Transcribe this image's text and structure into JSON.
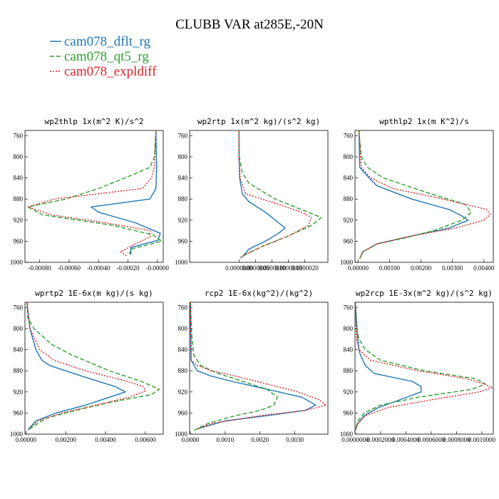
{
  "figure_title": "CLUBB VAR at285E,-20N",
  "legend": [
    {
      "label": "cam078_dflt_rg",
      "color": "#1f77b4",
      "dash": "solid"
    },
    {
      "label": "cam078_qt5_rg",
      "color": "#2ca02c",
      "dash": "dashed"
    },
    {
      "label": "cam078_expldiff",
      "color": "#d62728",
      "dash": "dotted"
    }
  ],
  "chart_data": [
    {
      "type": "line",
      "title": "wp2thlp  1x(m^2 K)/s^2",
      "xlim": [
        -0.0009,
        4e-05
      ],
      "xticks": [
        -0.0008,
        -0.0006,
        -0.0004,
        -0.0002,
        0.0
      ],
      "xticklabels": [
        "-0.00080",
        "-0.00060",
        "-0.00040",
        "-0.00020",
        "-0.00000"
      ],
      "ylim": [
        1000,
        750
      ],
      "yticks": [
        760,
        800,
        840,
        880,
        920,
        960,
        1000
      ],
      "series": [
        {
          "name": "cam078_dflt_rg",
          "y": [
            750,
            820,
            860,
            880,
            895,
            905,
            925,
            945,
            958,
            972,
            985
          ],
          "x": [
            -1e-05,
            -5e-06,
            -1e-05,
            -5e-05,
            -0.00045,
            -0.0004,
            -0.00015,
            2e-05,
            5e-06,
            -0.00018,
            -0.00018
          ]
        },
        {
          "name": "cam078_qt5_rg",
          "y": [
            750,
            800,
            820,
            840,
            860,
            880,
            895,
            910,
            930,
            948,
            960,
            975,
            985
          ],
          "x": [
            -1e-05,
            -2e-05,
            -5e-05,
            -0.00022,
            -0.0004,
            -0.00062,
            -0.00088,
            -0.00078,
            -0.0003,
            -3e-05,
            3e-05,
            -0.00018,
            -0.00019
          ]
        },
        {
          "name": "cam078_expldiff",
          "y": [
            750,
            820,
            840,
            860,
            880,
            895,
            910,
            925,
            940,
            952,
            965,
            980,
            988
          ],
          "x": [
            -1e-05,
            -2e-05,
            -4e-05,
            -0.0001,
            -0.0007,
            -0.00088,
            -0.00072,
            -0.00035,
            -5e-05,
            -5e-05,
            -0.00015,
            -0.00025,
            -0.00021
          ]
        }
      ]
    },
    {
      "type": "line",
      "title": "wp2rtp  1x(m^2 kg)/(s^2 kg)",
      "xlim": [
        -1.5e-06,
        2.7e-06
      ],
      "xticks": [
        0.0,
        5e-07,
        1e-06,
        1.5e-06,
        2e-06
      ],
      "xticklabels": [
        "0.0000000",
        "0.0000005",
        "0.0000010",
        "0.0000015",
        "0.0000020"
      ],
      "ylim": [
        1000,
        750
      ],
      "yticks": [
        760,
        800,
        840,
        880,
        920,
        960,
        1000
      ],
      "series": [
        {
          "name": "cam078_dflt_rg",
          "y": [
            750,
            800,
            840,
            870,
            885,
            905,
            925,
            935,
            945,
            960,
            975,
            990
          ],
          "x": [
            0.0,
            0.0,
            2e-08,
            1e-07,
            3e-07,
            8e-07,
            1.2e-06,
            1.4e-06,
            1.2e-06,
            8e-07,
            3e-07,
            1e-07
          ]
        },
        {
          "name": "cam078_qt5_rg",
          "y": [
            750,
            800,
            830,
            850,
            880,
            900,
            915,
            930,
            950,
            970,
            985,
            992
          ],
          "x": [
            0.0,
            1e-08,
            1e-07,
            3e-07,
            1.1e-06,
            1.9e-06,
            2.5e-06,
            2.2e-06,
            1.5e-06,
            7e-07,
            2e-07,
            5e-08
          ]
        },
        {
          "name": "cam078_expldiff",
          "y": [
            750,
            800,
            840,
            870,
            890,
            905,
            915,
            930,
            950,
            970,
            985,
            990
          ],
          "x": [
            0.0,
            0.0,
            3e-08,
            2e-07,
            1.2e-06,
            1.9e-06,
            2.2e-06,
            2.1e-06,
            1.5e-06,
            7e-07,
            2e-07,
            5e-08
          ]
        }
      ]
    },
    {
      "type": "line",
      "title": "wpthlp2  1x(m K^2)/s",
      "xlim": [
        -0.0001,
        0.0043
      ],
      "xticks": [
        0.0,
        0.001,
        0.002,
        0.003,
        0.004
      ],
      "xticklabels": [
        "0.00000",
        "0.00100",
        "0.00200",
        "0.00300",
        "0.00400"
      ],
      "ylim": [
        1000,
        750
      ],
      "yticks": [
        760,
        800,
        840,
        880,
        920,
        960,
        1000
      ],
      "series": [
        {
          "name": "cam078_dflt_rg",
          "y": [
            750,
            820,
            840,
            855,
            880,
            900,
            912,
            920,
            935,
            950,
            965,
            980,
            993
          ],
          "x": [
            3e-05,
            5e-05,
            0.00035,
            0.0006,
            0.0017,
            0.0029,
            0.0033,
            0.0035,
            0.0029,
            0.0017,
            0.0006,
            0.00015,
            5e-05
          ]
        },
        {
          "name": "cam078_qt5_rg",
          "y": [
            750,
            800,
            820,
            840,
            870,
            890,
            905,
            920,
            940,
            955,
            965,
            980,
            993
          ],
          "x": [
            2e-05,
            0.0001,
            0.0003,
            0.0008,
            0.0023,
            0.0034,
            0.0036,
            0.0033,
            0.0024,
            0.0014,
            0.0006,
            0.00015,
            5e-05
          ]
        },
        {
          "name": "cam078_expldiff",
          "y": [
            750,
            820,
            840,
            860,
            880,
            900,
            910,
            920,
            935,
            950,
            965,
            980,
            993
          ],
          "x": [
            3e-05,
            0.0001,
            0.0004,
            0.0011,
            0.0027,
            0.0041,
            0.0042,
            0.004,
            0.0031,
            0.0017,
            0.0006,
            0.00015,
            5e-05
          ]
        }
      ]
    },
    {
      "type": "line",
      "title": "wprtp2  1E-6x(m kg)/(s kg)",
      "xlim": [
        -5e-05,
        0.0069
      ],
      "xticks": [
        0.0,
        0.002,
        0.004,
        0.006
      ],
      "xticklabels": [
        "0.00000",
        "0.00200",
        "0.00400",
        "0.00600"
      ],
      "ylim": [
        1000,
        750
      ],
      "yticks": [
        760,
        800,
        840,
        880,
        920,
        960,
        1000
      ],
      "series": [
        {
          "name": "cam078_dflt_rg",
          "y": [
            750,
            800,
            840,
            860,
            870,
            890,
            910,
            920,
            930,
            945,
            960,
            975,
            992
          ],
          "x": [
            5e-05,
            0.0002,
            0.0005,
            0.0008,
            0.0012,
            0.0028,
            0.0045,
            0.005,
            0.0042,
            0.003,
            0.0015,
            0.0005,
            0.0001
          ]
        },
        {
          "name": "cam078_qt5_rg",
          "y": [
            750,
            780,
            800,
            830,
            850,
            880,
            900,
            915,
            925,
            940,
            955,
            970,
            992
          ],
          "x": [
            5e-05,
            0.0001,
            0.0004,
            0.0013,
            0.0023,
            0.0042,
            0.0058,
            0.0067,
            0.0063,
            0.0042,
            0.0025,
            0.001,
            0.0001
          ]
        },
        {
          "name": "cam078_expldiff",
          "y": [
            750,
            800,
            840,
            860,
            880,
            900,
            910,
            918,
            930,
            945,
            960,
            975,
            992
          ],
          "x": [
            5e-05,
            0.0002,
            0.0007,
            0.0014,
            0.003,
            0.0051,
            0.0059,
            0.006,
            0.0052,
            0.0035,
            0.0018,
            0.0006,
            0.0001
          ]
        }
      ]
    },
    {
      "type": "line",
      "title": "rcp2  1E-6x(kg^2)/(kg^2)",
      "xlim": [
        -2e-05,
        0.00395
      ],
      "xticks": [
        0.0,
        0.001,
        0.002,
        0.003
      ],
      "xticklabels": [
        "0.0000",
        "0.0010",
        "0.0020",
        "0.0030"
      ],
      "ylim": [
        1000,
        750
      ],
      "yticks": [
        760,
        800,
        840,
        880,
        920,
        960,
        1000
      ],
      "series": [
        {
          "name": "cam078_dflt_rg",
          "y": [
            750,
            860,
            880,
            890,
            900,
            915,
            930,
            945,
            955,
            965,
            975,
            990
          ],
          "x": [
            0.0,
            2e-05,
            0.0002,
            0.0006,
            0.0012,
            0.0022,
            0.0032,
            0.0036,
            0.0033,
            0.0022,
            0.001,
            0.0002
          ]
        },
        {
          "name": "cam078_qt5_rg",
          "y": [
            750,
            820,
            850,
            870,
            885,
            900,
            915,
            930,
            945,
            955,
            965,
            980,
            993
          ],
          "x": [
            0.0,
            5e-05,
            0.0001,
            0.0003,
            0.0008,
            0.0015,
            0.0022,
            0.0025,
            0.0024,
            0.002,
            0.0013,
            0.0005,
            0.0001
          ]
        },
        {
          "name": "cam078_expldiff",
          "y": [
            750,
            860,
            870,
            880,
            890,
            905,
            920,
            935,
            945,
            955,
            965,
            980,
            990
          ],
          "x": [
            0.0,
            3e-05,
            0.0002,
            0.0006,
            0.0013,
            0.0022,
            0.0031,
            0.0037,
            0.0039,
            0.0033,
            0.002,
            0.0006,
            0.0002
          ]
        }
      ]
    },
    {
      "type": "line",
      "title": "wp2rcp  1E-3x(m^2 kg)/(s^2 kg)",
      "xlim": [
        -2e-06,
        0.00109
      ],
      "xticks": [
        0.0,
        0.0002,
        0.0004,
        0.0006,
        0.0008,
        0.001
      ],
      "xticklabels": [
        "0.0000000",
        "0.0002000",
        "0.0004000",
        "0.0006000",
        "0.0008000",
        "0.0010000"
      ],
      "ylim": [
        1000,
        750
      ],
      "yticks": [
        760,
        800,
        840,
        880,
        920,
        960,
        1000
      ],
      "series": [
        {
          "name": "cam078_dflt_rg",
          "y": [
            750,
            820,
            840,
            850,
            870,
            885,
            900,
            910,
            920,
            935,
            950,
            965,
            980,
            993
          ],
          "x": [
            0.0,
            2e-05,
            3e-05,
            4e-05,
            8e-05,
            0.00015,
            0.00045,
            0.00052,
            0.00052,
            0.00035,
            0.00018,
            7e-05,
            2e-05,
            0.0
          ]
        },
        {
          "name": "cam078_qt5_rg",
          "y": [
            750,
            800,
            820,
            840,
            860,
            880,
            895,
            905,
            915,
            930,
            945,
            960,
            975,
            993
          ],
          "x": [
            0.0,
            1e-05,
            3e-05,
            8e-05,
            0.0002,
            0.00055,
            0.00095,
            0.00103,
            0.00092,
            0.0005,
            0.0002,
            7e-05,
            2e-05,
            0.0
          ]
        },
        {
          "name": "cam078_expldiff",
          "y": [
            750,
            820,
            840,
            860,
            880,
            895,
            905,
            912,
            920,
            935,
            950,
            965,
            980,
            993
          ],
          "x": [
            0.0,
            1e-05,
            3e-05,
            0.00012,
            0.0005,
            0.00088,
            0.00102,
            0.00108,
            0.00098,
            0.0006,
            0.00025,
            8e-05,
            2e-05,
            0.0
          ]
        }
      ]
    }
  ]
}
